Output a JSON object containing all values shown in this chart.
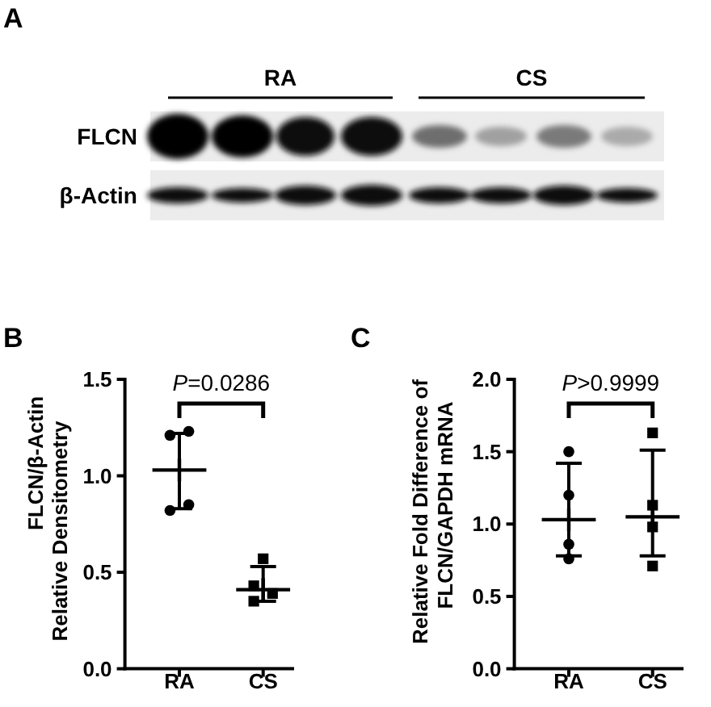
{
  "chart_data": [
    {
      "type": "other",
      "title": "A",
      "annotations": [
        "RA",
        "CS",
        "FLCN",
        "β-Actin"
      ]
    },
    {
      "type": "scatter",
      "title": "B",
      "ylabel": "FLCN/β-Actin\nRelative Densitometry",
      "categories": [
        "RA",
        "CS"
      ],
      "ylim": [
        0,
        1.5
      ],
      "yticks": [
        {
          "value": 0,
          "label": "0.0"
        },
        {
          "value": 0.5,
          "label": "0.5"
        },
        {
          "value": 1,
          "label": "1.0"
        },
        {
          "value": 1.5,
          "label": "1.5"
        }
      ],
      "series": [
        {
          "color": "#000000",
          "marker": "circle",
          "x": [
            "RA",
            "RA",
            "RA",
            "RA"
          ],
          "values": [
            1.21,
            1.23,
            0.82,
            0.85
          ]
        },
        {
          "color": "#000000",
          "marker": "square",
          "x": [
            "CS",
            "CS",
            "CS",
            "CS"
          ],
          "values": [
            0.57,
            0.43,
            0.39,
            0.35
          ]
        },
        {
          "color": "#000000",
          "marker": "cross",
          "x": [
            "RA",
            "CS"
          ],
          "values": [
            1.03,
            0.41
          ],
          "errors": [
            [
              0.83,
              1.22
            ],
            [
              0.35,
              0.53
            ]
          ]
        }
      ],
      "annotations": [
        "P=0.0286"
      ]
    },
    {
      "type": "scatter",
      "title": "C",
      "ylabel": "Relative Fold Difference of\nFLCN/GAPDH mRNA",
      "categories": [
        "RA",
        "CS"
      ],
      "ylim": [
        0,
        2
      ],
      "yticks": [
        {
          "value": 0,
          "label": "0.0"
        },
        {
          "value": 0.5,
          "label": "0.5"
        },
        {
          "value": 1,
          "label": "1.0"
        },
        {
          "value": 1.5,
          "label": "1.5"
        },
        {
          "value": 2,
          "label": "2.0"
        }
      ],
      "series": [
        {
          "color": "#000000",
          "marker": "circle",
          "x": [
            "RA",
            "RA",
            "RA",
            "RA"
          ],
          "values": [
            1.5,
            1.2,
            0.86,
            0.76
          ]
        },
        {
          "color": "#000000",
          "marker": "square",
          "x": [
            "CS",
            "CS",
            "CS",
            "CS"
          ],
          "values": [
            1.63,
            1.13,
            0.98,
            0.71
          ]
        },
        {
          "color": "#000000",
          "marker": "cross",
          "x": [
            "RA",
            "CS"
          ],
          "values": [
            1.03,
            1.05
          ],
          "errors": [
            [
              0.78,
              1.42
            ],
            [
              0.78,
              1.51
            ]
          ]
        }
      ],
      "annotations": [
        "P>0.9999"
      ]
    }
  ]
}
